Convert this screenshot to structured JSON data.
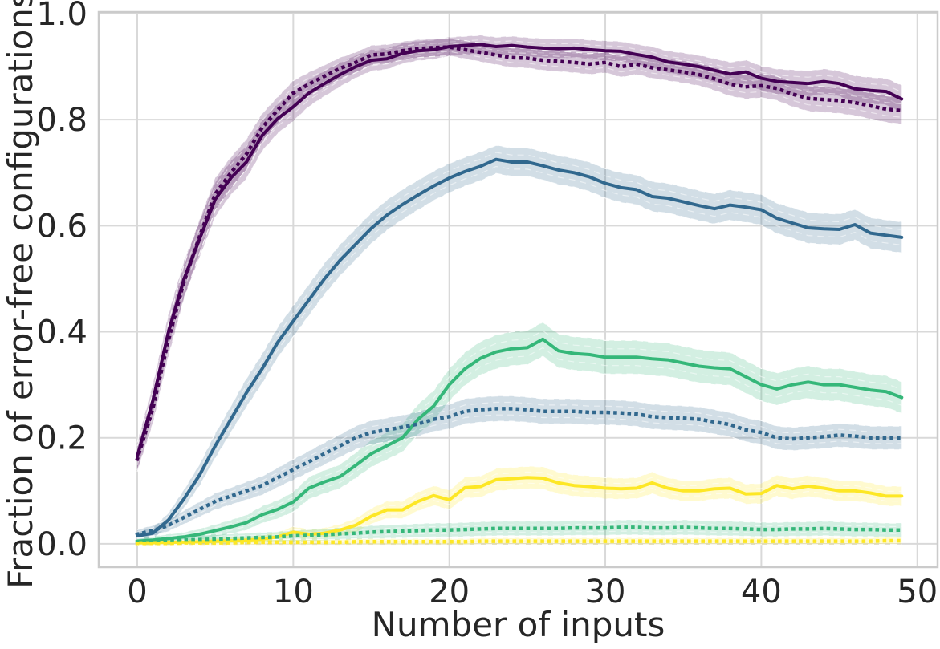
{
  "figure": {
    "background": "#ffffff",
    "text_color": "#262626",
    "grid_color": "#d9d9d9",
    "border_color": "#cbcbcb"
  },
  "chart_data": {
    "type": "line",
    "title": "",
    "xlabel": "Number of inputs",
    "ylabel": "Fraction of error-free configurations",
    "grid": true,
    "legend_position": "none",
    "xlim": [
      -2.47,
      51.3
    ],
    "ylim": [
      -0.044,
      1.003
    ],
    "x_ticks": [
      0,
      10,
      20,
      30,
      40,
      50
    ],
    "x_tick_labels": [
      "0",
      "10",
      "20",
      "30",
      "40",
      "50"
    ],
    "y_ticks": [
      0.0,
      0.2,
      0.4,
      0.6,
      0.8,
      1.0
    ],
    "y_tick_labels": [
      "0.0",
      "0.2",
      "0.4",
      "0.6",
      "0.8",
      "1.0"
    ],
    "x": [
      0,
      1,
      2,
      3,
      4,
      5,
      6,
      7,
      8,
      9,
      10,
      11,
      12,
      13,
      14,
      15,
      16,
      17,
      18,
      19,
      20,
      21,
      22,
      23,
      24,
      25,
      26,
      27,
      28,
      29,
      30,
      31,
      32,
      33,
      34,
      35,
      36,
      37,
      38,
      39,
      40,
      41,
      42,
      43,
      44,
      45,
      46,
      47,
      48,
      49
    ],
    "series": [
      {
        "name": "purple-solid",
        "color": "#440154",
        "style": "solid",
        "band_k": 0.065,
        "values": [
          0.165,
          0.27,
          0.4,
          0.5,
          0.575,
          0.65,
          0.69,
          0.72,
          0.77,
          0.802,
          0.824,
          0.85,
          0.868,
          0.885,
          0.9,
          0.912,
          0.915,
          0.925,
          0.93,
          0.932,
          0.938,
          0.94,
          0.942,
          0.938,
          0.94,
          0.937,
          0.935,
          0.934,
          0.935,
          0.932,
          0.93,
          0.929,
          0.923,
          0.918,
          0.909,
          0.905,
          0.9,
          0.893,
          0.886,
          0.89,
          0.878,
          0.872,
          0.87,
          0.868,
          0.872,
          0.868,
          0.858,
          0.855,
          0.853,
          0.839
        ]
      },
      {
        "name": "blue-solid",
        "color": "#31688e",
        "style": "solid",
        "band_k": 0.055,
        "values": [
          0.015,
          0.02,
          0.045,
          0.085,
          0.13,
          0.185,
          0.235,
          0.285,
          0.33,
          0.38,
          0.42,
          0.46,
          0.5,
          0.535,
          0.565,
          0.595,
          0.62,
          0.64,
          0.658,
          0.675,
          0.69,
          0.702,
          0.712,
          0.725,
          0.72,
          0.72,
          0.713,
          0.705,
          0.7,
          0.692,
          0.68,
          0.672,
          0.668,
          0.655,
          0.652,
          0.645,
          0.638,
          0.632,
          0.639,
          0.635,
          0.63,
          0.614,
          0.605,
          0.596,
          0.594,
          0.593,
          0.602,
          0.586,
          0.582,
          0.578
        ]
      },
      {
        "name": "green-solid",
        "color": "#35b779",
        "style": "solid",
        "band_k": 0.062,
        "values": [
          0.005,
          0.007,
          0.01,
          0.013,
          0.018,
          0.025,
          0.032,
          0.04,
          0.055,
          0.065,
          0.079,
          0.105,
          0.117,
          0.127,
          0.148,
          0.17,
          0.185,
          0.2,
          0.235,
          0.26,
          0.3,
          0.33,
          0.35,
          0.362,
          0.368,
          0.37,
          0.386,
          0.364,
          0.359,
          0.357,
          0.352,
          0.352,
          0.352,
          0.349,
          0.347,
          0.341,
          0.335,
          0.332,
          0.33,
          0.315,
          0.3,
          0.292,
          0.3,
          0.305,
          0.3,
          0.3,
          0.295,
          0.29,
          0.287,
          0.276
        ]
      },
      {
        "name": "yellow-solid",
        "color": "#fde725",
        "style": "solid",
        "band_k": 0.058,
        "values": [
          0.002,
          0.002,
          0.003,
          0.003,
          0.004,
          0.005,
          0.006,
          0.007,
          0.009,
          0.013,
          0.022,
          0.018,
          0.02,
          0.026,
          0.035,
          0.052,
          0.064,
          0.064,
          0.08,
          0.091,
          0.083,
          0.106,
          0.108,
          0.121,
          0.123,
          0.125,
          0.124,
          0.115,
          0.11,
          0.108,
          0.105,
          0.104,
          0.105,
          0.115,
          0.105,
          0.1,
          0.1,
          0.104,
          0.105,
          0.094,
          0.095,
          0.11,
          0.104,
          0.109,
          0.105,
          0.1,
          0.1,
          0.096,
          0.09,
          0.09
        ]
      },
      {
        "name": "purple-dotted",
        "color": "#440154",
        "style": "dotted",
        "band_k": 0.06,
        "values": [
          0.16,
          0.255,
          0.385,
          0.495,
          0.58,
          0.66,
          0.7,
          0.735,
          0.785,
          0.818,
          0.85,
          0.867,
          0.882,
          0.897,
          0.908,
          0.922,
          0.924,
          0.93,
          0.934,
          0.936,
          0.937,
          0.932,
          0.927,
          0.922,
          0.917,
          0.916,
          0.912,
          0.91,
          0.908,
          0.905,
          0.908,
          0.9,
          0.905,
          0.898,
          0.894,
          0.89,
          0.885,
          0.877,
          0.867,
          0.862,
          0.864,
          0.859,
          0.848,
          0.84,
          0.838,
          0.836,
          0.832,
          0.826,
          0.82,
          0.817
        ]
      },
      {
        "name": "blue-dotted",
        "color": "#31688e",
        "style": "dotted",
        "band_k": 0.05,
        "values": [
          0.018,
          0.025,
          0.035,
          0.05,
          0.065,
          0.08,
          0.09,
          0.1,
          0.11,
          0.125,
          0.14,
          0.155,
          0.17,
          0.185,
          0.2,
          0.21,
          0.215,
          0.22,
          0.226,
          0.235,
          0.24,
          0.25,
          0.253,
          0.255,
          0.255,
          0.253,
          0.25,
          0.25,
          0.25,
          0.248,
          0.248,
          0.247,
          0.245,
          0.24,
          0.238,
          0.237,
          0.235,
          0.23,
          0.225,
          0.215,
          0.21,
          0.2,
          0.198,
          0.2,
          0.202,
          0.205,
          0.203,
          0.2,
          0.2,
          0.2
        ]
      },
      {
        "name": "green-dotted",
        "color": "#35b779",
        "style": "dotted",
        "band_k": 0.07,
        "values": [
          0.004,
          0.005,
          0.006,
          0.007,
          0.008,
          0.009,
          0.01,
          0.011,
          0.012,
          0.013,
          0.015,
          0.016,
          0.017,
          0.019,
          0.02,
          0.022,
          0.023,
          0.024,
          0.025,
          0.026,
          0.026,
          0.027,
          0.028,
          0.029,
          0.029,
          0.029,
          0.029,
          0.029,
          0.03,
          0.03,
          0.03,
          0.031,
          0.031,
          0.03,
          0.03,
          0.031,
          0.03,
          0.029,
          0.029,
          0.028,
          0.027,
          0.027,
          0.028,
          0.028,
          0.029,
          0.028,
          0.027,
          0.027,
          0.026,
          0.026
        ]
      },
      {
        "name": "yellow-dotted",
        "color": "#fde725",
        "style": "dotted",
        "band_k": 0.06,
        "values": [
          0.001,
          0.001,
          0.001,
          0.002,
          0.002,
          0.002,
          0.002,
          0.003,
          0.003,
          0.003,
          0.003,
          0.003,
          0.003,
          0.003,
          0.004,
          0.004,
          0.004,
          0.004,
          0.004,
          0.004,
          0.004,
          0.004,
          0.005,
          0.005,
          0.005,
          0.005,
          0.005,
          0.005,
          0.005,
          0.005,
          0.005,
          0.005,
          0.005,
          0.005,
          0.005,
          0.005,
          0.005,
          0.005,
          0.005,
          0.005,
          0.005,
          0.005,
          0.005,
          0.005,
          0.005,
          0.005,
          0.005,
          0.005,
          0.006,
          0.006
        ]
      }
    ]
  }
}
